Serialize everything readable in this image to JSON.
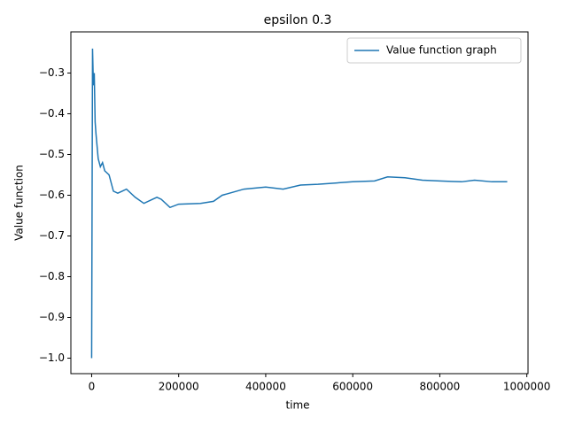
{
  "chart_data": {
    "type": "line",
    "title": "epsilon 0.3",
    "x_label": "time",
    "y_label": "Value function",
    "x": [
      0,
      2000,
      4000,
      6000,
      8000,
      10000,
      15000,
      20000,
      25000,
      30000,
      40000,
      50000,
      60000,
      70000,
      80000,
      100000,
      120000,
      140000,
      150000,
      160000,
      180000,
      200000,
      250000,
      280000,
      300000,
      350000,
      400000,
      440000,
      480000,
      520000,
      560000,
      600000,
      650000,
      680000,
      720000,
      760000,
      800000,
      850000,
      880000,
      920000,
      955000
    ],
    "series": [
      {
        "name": "Value function graph",
        "color": "#1f77b4",
        "values": [
          -1.0,
          -0.24,
          -0.33,
          -0.3,
          -0.42,
          -0.45,
          -0.51,
          -0.53,
          -0.52,
          -0.54,
          -0.55,
          -0.59,
          -0.595,
          -0.59,
          -0.585,
          -0.605,
          -0.62,
          -0.61,
          -0.605,
          -0.61,
          -0.63,
          -0.622,
          -0.62,
          -0.615,
          -0.6,
          -0.585,
          -0.58,
          -0.585,
          -0.575,
          -0.573,
          -0.57,
          -0.567,
          -0.565,
          -0.555,
          -0.557,
          -0.563,
          -0.565,
          -0.567,
          -0.563,
          -0.567,
          -0.567
        ]
      }
    ],
    "xlim": [
      -47750,
      1002750
    ],
    "ylim": [
      -1.038,
      -0.199
    ],
    "xticks": [
      0,
      200000,
      400000,
      600000,
      800000,
      1000000
    ],
    "yticks": [
      {
        "value": -1.0,
        "label": "−1.0"
      },
      {
        "value": -0.9,
        "label": "−0.9"
      },
      {
        "value": -0.8,
        "label": "−0.8"
      },
      {
        "value": -0.7,
        "label": "−0.7"
      },
      {
        "value": -0.6,
        "label": "−0.6"
      },
      {
        "value": -0.5,
        "label": "−0.5"
      },
      {
        "value": -0.4,
        "label": "−0.4"
      },
      {
        "value": -0.3,
        "label": "−0.3"
      }
    ],
    "legend": "upper right"
  }
}
